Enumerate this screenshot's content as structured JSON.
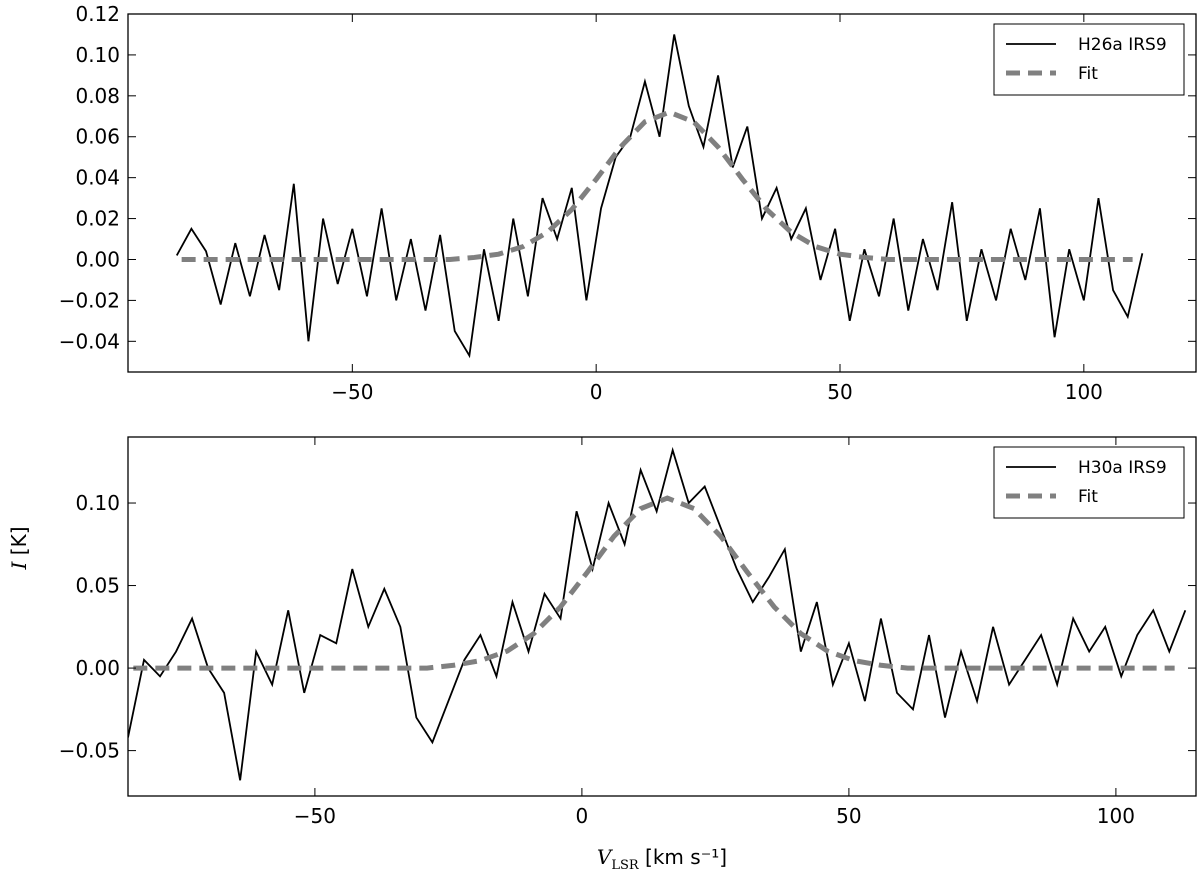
{
  "chart_data": [
    {
      "type": "line",
      "xlim": [
        -96,
        123
      ],
      "ylim": [
        -0.055,
        0.12
      ],
      "xticks": [
        {
          "value": -50,
          "label": "−50"
        },
        0,
        50,
        100
      ],
      "yticks": [
        {
          "value": -0.04,
          "label": "−0.04"
        },
        {
          "value": -0.02,
          "label": "−0.02"
        },
        {
          "value": 0,
          "label": "0.00"
        },
        0.02,
        0.04,
        0.06,
        0.08,
        {
          "value": 0.1,
          "label": "0.10"
        },
        0.12
      ],
      "legend": "upper right",
      "series": [
        {
          "name": "H26a IRS9",
          "color": "#000000",
          "linestyle": "solid",
          "x": [
            -86,
            -83,
            -80,
            -77,
            -74,
            -71,
            -68,
            -65,
            -62,
            -59,
            -56,
            -53,
            -50,
            -47,
            -44,
            -41,
            -38,
            -35,
            -32,
            -29,
            -26,
            -23,
            -20,
            -17,
            -14,
            -11,
            -8,
            -5,
            -2,
            1,
            4,
            7,
            10,
            13,
            16,
            19,
            22,
            25,
            28,
            31,
            34,
            37,
            40,
            43,
            46,
            49,
            52,
            55,
            58,
            61,
            64,
            67,
            70,
            73,
            76,
            79,
            82,
            85,
            88,
            91,
            94,
            97,
            100,
            103,
            106,
            109,
            112
          ],
          "values": [
            0.002,
            0.015,
            0.004,
            -0.022,
            0.008,
            -0.018,
            0.012,
            -0.015,
            0.037,
            -0.04,
            0.02,
            -0.012,
            0.015,
            -0.018,
            0.025,
            -0.02,
            0.01,
            -0.025,
            0.012,
            -0.035,
            -0.047,
            0.005,
            -0.03,
            0.02,
            -0.018,
            0.03,
            0.01,
            0.035,
            -0.02,
            0.025,
            0.05,
            0.06,
            0.087,
            0.06,
            0.11,
            0.075,
            0.055,
            0.09,
            0.045,
            0.065,
            0.02,
            0.035,
            0.01,
            0.025,
            -0.01,
            0.015,
            -0.03,
            0.005,
            -0.018,
            0.02,
            -0.025,
            0.01,
            -0.015,
            0.028,
            -0.03,
            0.005,
            -0.02,
            0.015,
            -0.01,
            0.025,
            -0.038,
            0.005,
            -0.02,
            0.03,
            -0.015,
            -0.028,
            0.003
          ]
        },
        {
          "name": "Fit",
          "color": "#808080",
          "linestyle": "dashed",
          "x": [
            -85,
            -80,
            -75,
            -70,
            -65,
            -60,
            -55,
            -50,
            -45,
            -40,
            -35,
            -30,
            -25,
            -20,
            -15,
            -10,
            -5,
            0,
            5,
            10,
            15,
            20,
            25,
            30,
            35,
            40,
            45,
            50,
            55,
            60,
            65,
            70,
            75,
            80,
            85,
            90,
            95,
            100,
            105,
            110
          ],
          "values": [
            0,
            0,
            0,
            0,
            0,
            0,
            0,
            0,
            0,
            0,
            0,
            0,
            0.001,
            0.0026,
            0.0063,
            0.0133,
            0.0244,
            0.0392,
            0.055,
            0.0673,
            0.072,
            0.0673,
            0.055,
            0.0392,
            0.0244,
            0.0133,
            0.0063,
            0.0026,
            0.001,
            0,
            0,
            0,
            0,
            0,
            0,
            0,
            0,
            0,
            0,
            0
          ]
        }
      ]
    },
    {
      "type": "line",
      "xlim": [
        -85,
        115
      ],
      "ylim": [
        -0.0775,
        0.14
      ],
      "xticks": [
        {
          "value": -50,
          "label": "−50"
        },
        0,
        50,
        100
      ],
      "yticks": [
        {
          "value": -0.05,
          "label": "−0.05"
        },
        {
          "value": 0,
          "label": "0.00"
        },
        0.05,
        {
          "value": 0.1,
          "label": "0.10"
        }
      ],
      "xlabel": {
        "symbol": "V",
        "subscript": "LSR",
        "unit": " [km s⁻¹]"
      },
      "ylabel": {
        "symbol": "I",
        "unit": " [K]"
      },
      "legend": "upper right",
      "series": [
        {
          "name": "H30a IRS9",
          "color": "#000000",
          "linestyle": "solid",
          "x": [
            -85,
            -82,
            -79,
            -76,
            -73,
            -70,
            -67,
            -64,
            -61,
            -58,
            -55,
            -52,
            -49,
            -46,
            -43,
            -40,
            -37,
            -34,
            -31,
            -28,
            -25,
            -22,
            -19,
            -16,
            -13,
            -10,
            -7,
            -4,
            -1,
            2,
            5,
            8,
            11,
            14,
            17,
            20,
            23,
            26,
            29,
            32,
            35,
            38,
            41,
            44,
            47,
            50,
            53,
            56,
            59,
            62,
            65,
            68,
            71,
            74,
            77,
            80,
            83,
            86,
            89,
            92,
            95,
            98,
            101,
            104,
            107,
            110,
            113
          ],
          "values": [
            -0.042,
            0.005,
            -0.005,
            0.01,
            0.03,
            0,
            -0.015,
            -0.068,
            0.01,
            -0.01,
            0.035,
            -0.015,
            0.02,
            0.015,
            0.06,
            0.025,
            0.048,
            0.025,
            -0.03,
            -0.045,
            -0.02,
            0.005,
            0.02,
            -0.005,
            0.04,
            0.01,
            0.045,
            0.03,
            0.095,
            0.06,
            0.1,
            0.075,
            0.12,
            0.095,
            0.132,
            0.1,
            0.11,
            0.085,
            0.06,
            0.04,
            0.055,
            0.072,
            0.01,
            0.04,
            -0.01,
            0.015,
            -0.02,
            0.03,
            -0.015,
            -0.025,
            0.02,
            -0.03,
            0.01,
            -0.02,
            0.025,
            -0.01,
            0.005,
            0.02,
            -0.01,
            0.03,
            0.01,
            0.025,
            -0.005,
            0.02,
            0.035,
            0.01,
            0.035
          ]
        },
        {
          "name": "Fit",
          "color": "#808080",
          "linestyle": "dashed",
          "x": [
            -84,
            -79,
            -74,
            -69,
            -64,
            -59,
            -54,
            -49,
            -44,
            -39,
            -34,
            -29,
            -24,
            -19,
            -14,
            -9,
            -4,
            1,
            6,
            11,
            16,
            21,
            26,
            31,
            36,
            41,
            46,
            51,
            56,
            61,
            66,
            71,
            76,
            81,
            86,
            91,
            96,
            101,
            106,
            111
          ],
          "values": [
            0,
            0,
            0,
            0,
            0,
            0,
            0,
            0,
            0,
            0,
            0,
            0,
            0.0017,
            0.0045,
            0.0103,
            0.0209,
            0.0371,
            0.058,
            0.0798,
            0.0966,
            0.103,
            0.0966,
            0.0798,
            0.058,
            0.0371,
            0.0209,
            0.0103,
            0.0045,
            0.0017,
            0,
            0,
            0,
            0,
            0,
            0,
            0,
            0,
            0,
            0,
            0
          ]
        }
      ]
    }
  ]
}
